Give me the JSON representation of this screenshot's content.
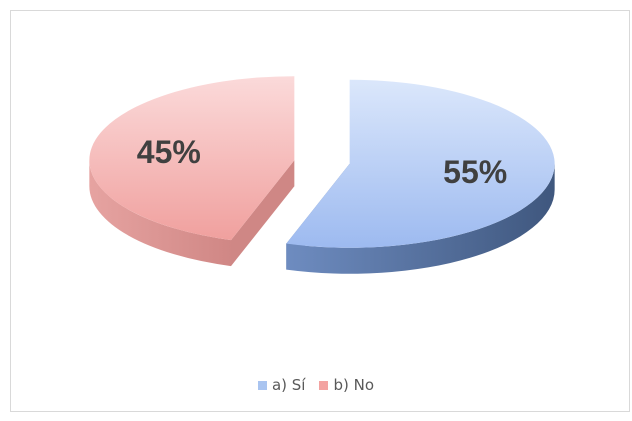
{
  "chart_data": {
    "type": "pie",
    "style": "3d-exploded",
    "categories": [
      "a) Sí",
      "b) No"
    ],
    "values": [
      55,
      45
    ],
    "labels": [
      "55%",
      "45%"
    ],
    "colors": [
      "#a9c4f0",
      "#f3a3a1"
    ],
    "side_colors": [
      "#5a78a8",
      "#cf8785"
    ],
    "legend_position": "bottom",
    "title": ""
  }
}
